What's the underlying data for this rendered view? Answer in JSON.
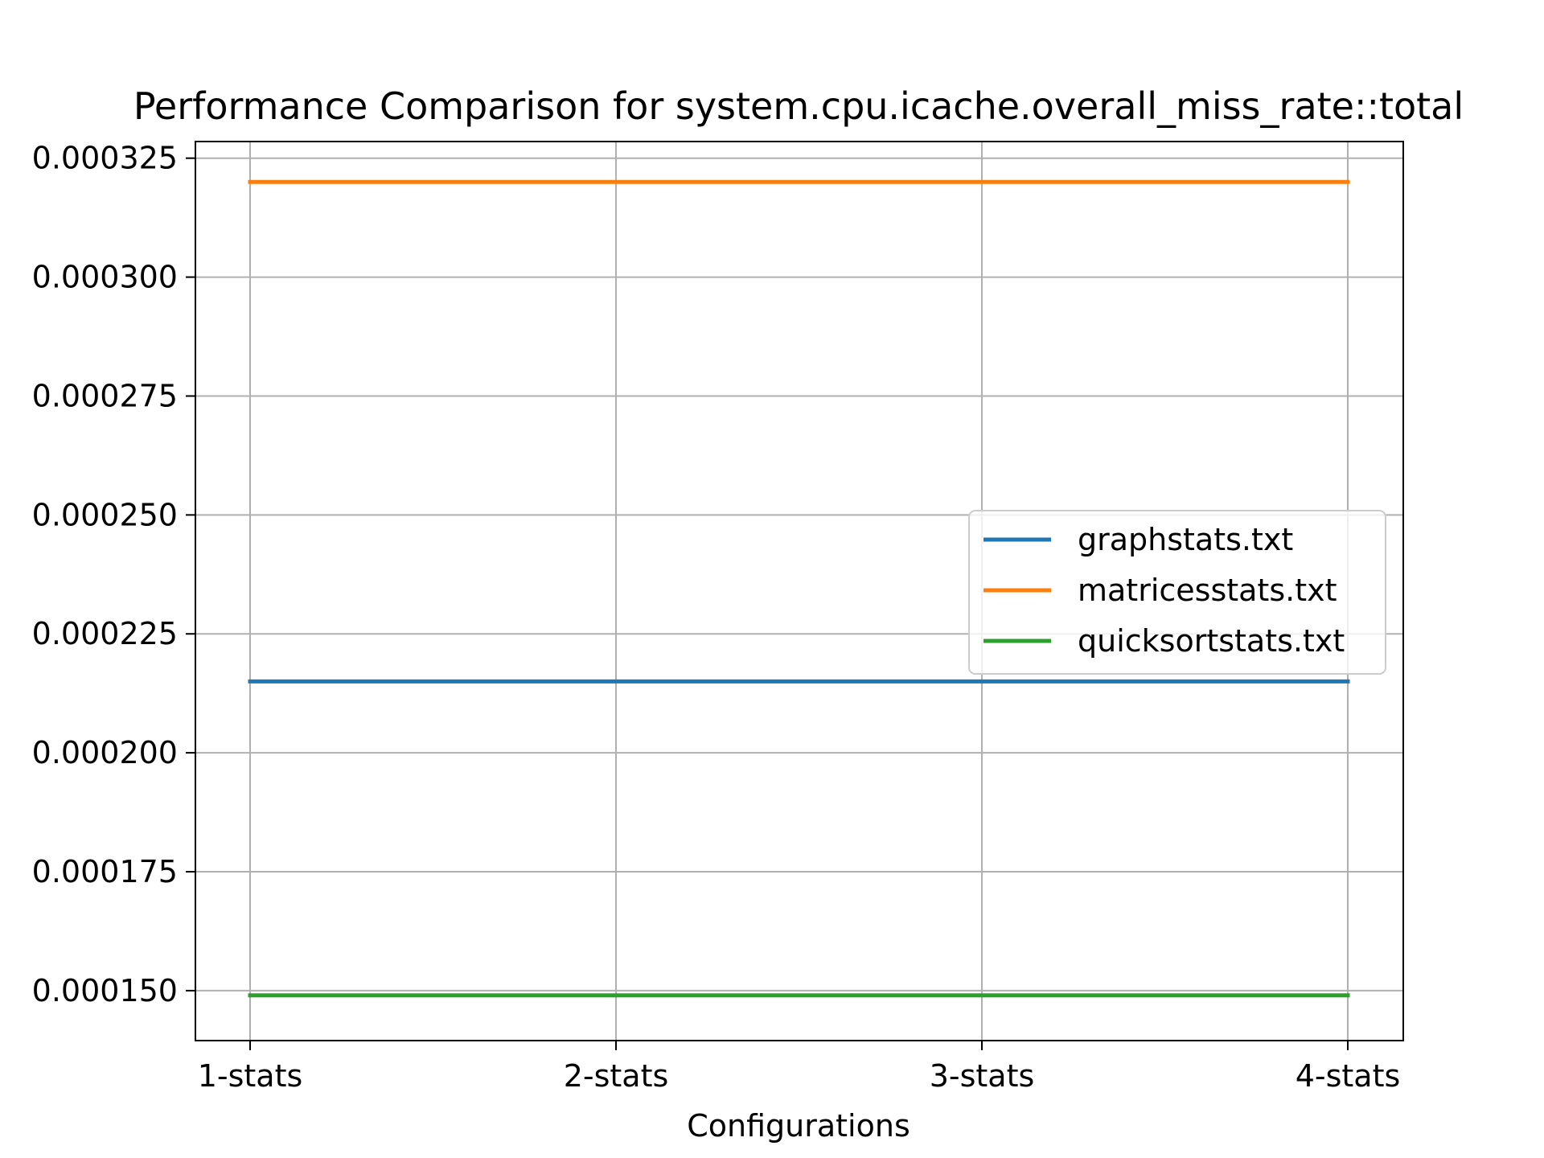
{
  "chart_data": {
    "type": "line",
    "title": "Performance Comparison for system.cpu.icache.overall_miss_rate::total",
    "xlabel": "Configurations",
    "ylabel": "",
    "categories": [
      "1-stats",
      "2-stats",
      "3-stats",
      "4-stats"
    ],
    "series": [
      {
        "name": "graphstats.txt",
        "values": [
          0.000215,
          0.000215,
          0.000215,
          0.000215
        ],
        "color": "#1f77b4"
      },
      {
        "name": "matricesstats.txt",
        "values": [
          0.00032,
          0.00032,
          0.00032,
          0.00032
        ],
        "color": "#ff7f0e"
      },
      {
        "name": "quicksortstats.txt",
        "values": [
          0.000149,
          0.000149,
          0.000149,
          0.000149
        ],
        "color": "#2ca02c"
      }
    ],
    "ylim": [
      0.0001395,
      0.0003285
    ],
    "yticks": [
      0.00015,
      0.000175,
      0.0002,
      0.000225,
      0.00025,
      0.000275,
      0.0003,
      0.000325
    ],
    "ytick_labels": [
      "0.000150",
      "0.000175",
      "0.000200",
      "0.000225",
      "0.000250",
      "0.000275",
      "0.000300",
      "0.000325"
    ],
    "grid": true,
    "legend_position": "center-right"
  }
}
